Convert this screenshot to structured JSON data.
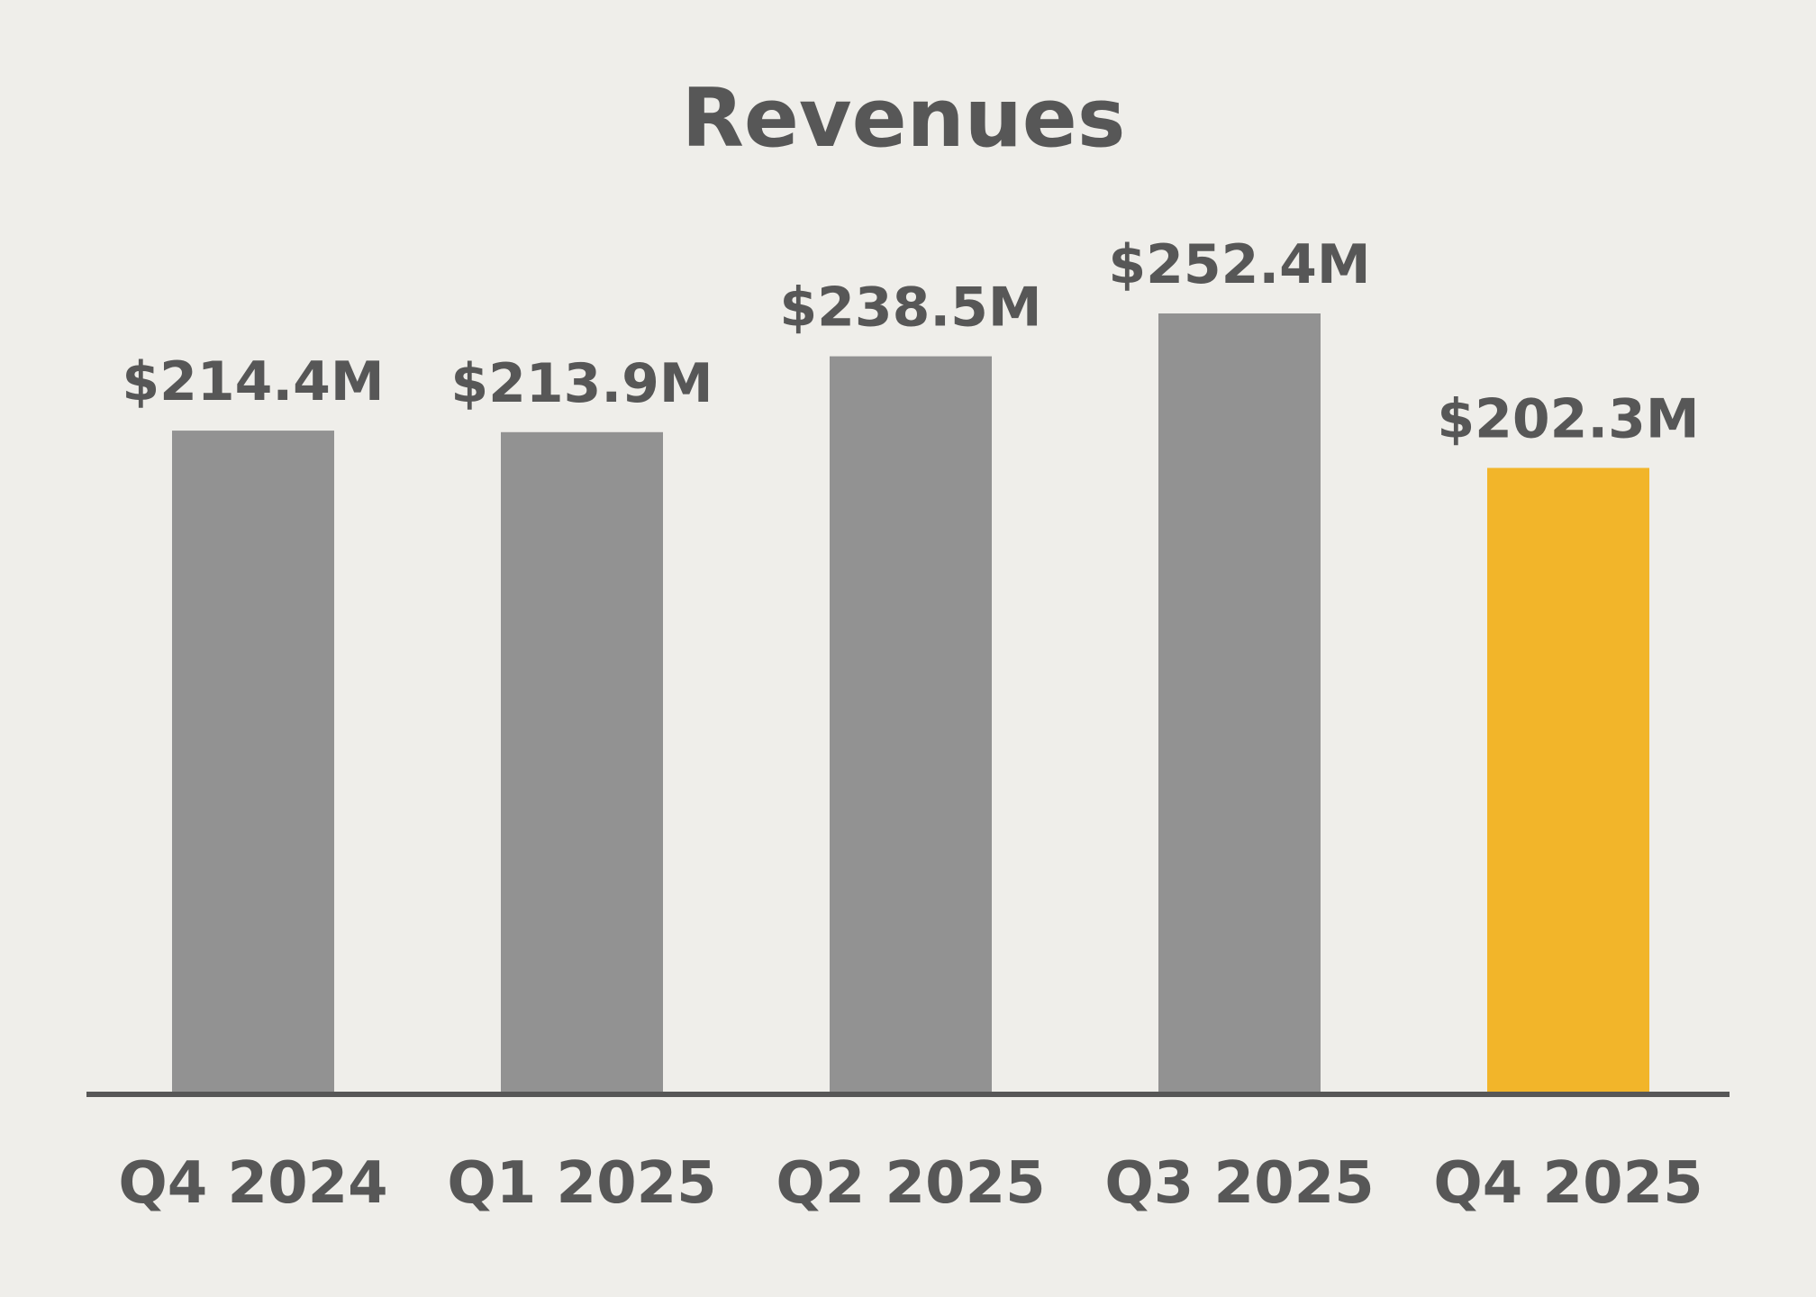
{
  "chart_data": {
    "type": "bar",
    "title": "Revenues",
    "xlabel": "",
    "ylabel": "",
    "unit": "$M",
    "categories": [
      "Q4 2024",
      "Q1 2025",
      "Q2 2025",
      "Q3 2025",
      "Q4 2025"
    ],
    "values": [
      214.4,
      213.9,
      238.5,
      252.4,
      202.3
    ],
    "data_labels": [
      "$214.4M",
      "$213.9M",
      "$238.5M",
      "$252.4M",
      "$202.3M"
    ],
    "bar_colors": [
      "#929292",
      "#929292",
      "#929292",
      "#929292",
      "#f2b52a"
    ],
    "axis_color": "#575757",
    "text_color": "#575757",
    "background_color": "#efeeea",
    "grid": false,
    "ylim": [
      0,
      280
    ]
  }
}
